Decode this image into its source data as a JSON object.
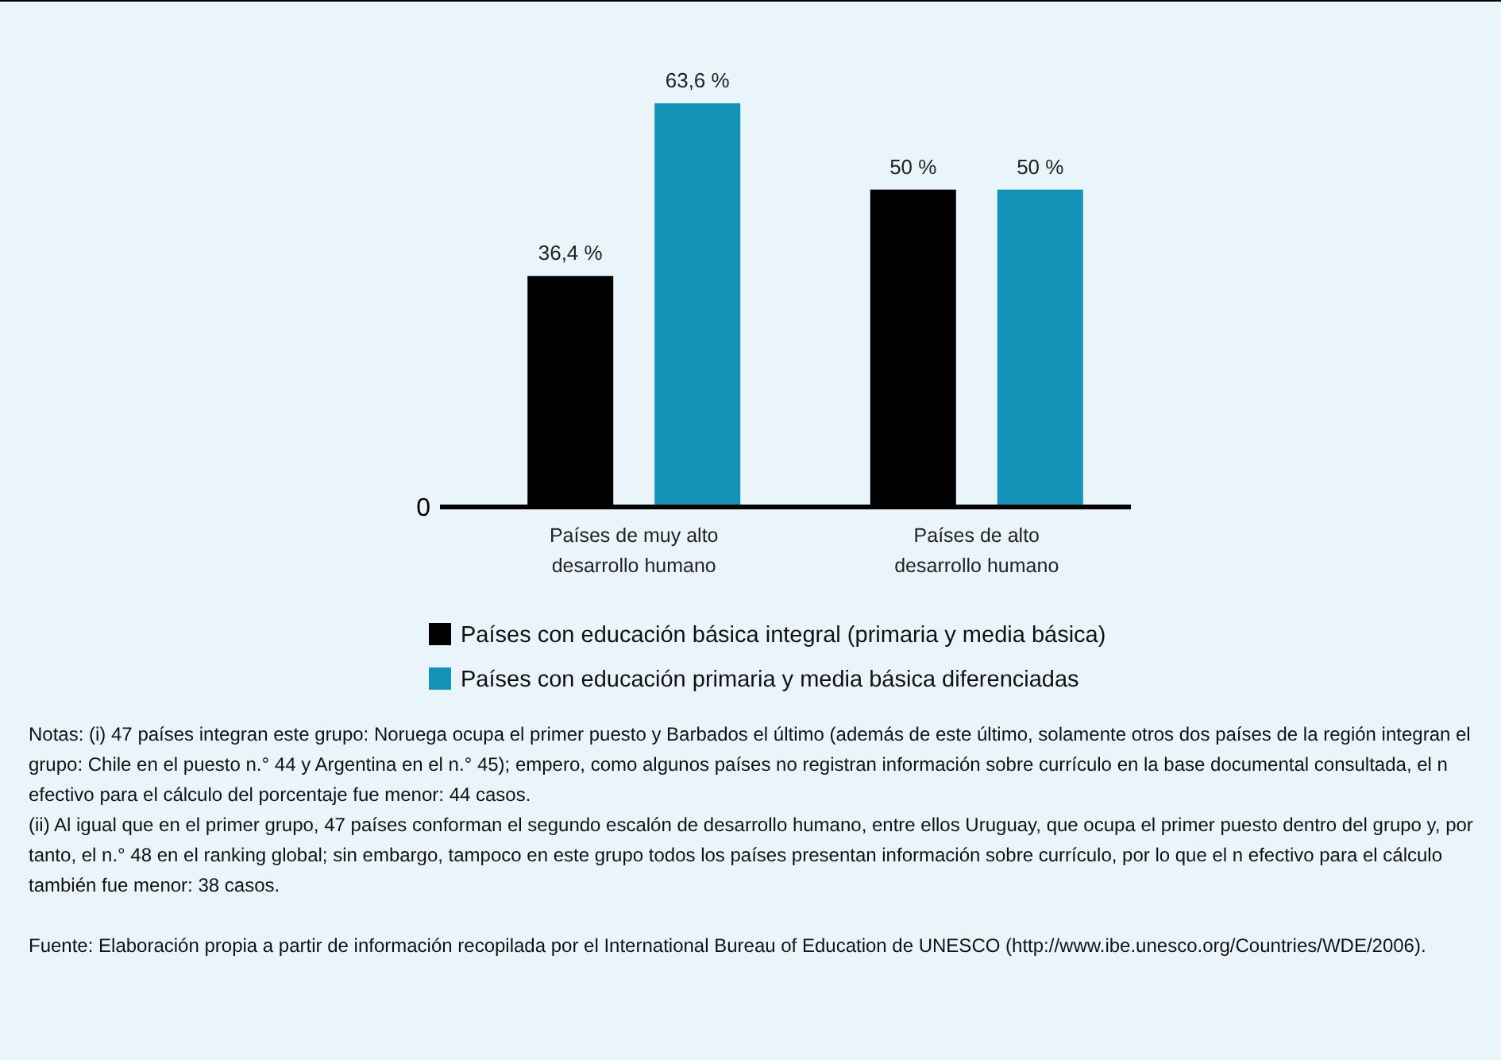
{
  "chart_data": {
    "type": "bar",
    "categories": [
      "Países de muy alto desarrollo humano",
      "Países de alto desarrollo humano"
    ],
    "series": [
      {
        "name": "Países con educación básica integral (primaria y media básica)",
        "color": "#000000",
        "values": [
          36.4,
          50
        ],
        "value_labels": [
          "36,4 %",
          "50 %"
        ]
      },
      {
        "name": "Países con educación primaria y media básica diferenciadas",
        "color": "#1492b8",
        "values": [
          63.6,
          50
        ],
        "value_labels": [
          "63,6 %",
          "50 %"
        ]
      }
    ],
    "legend": "bottom",
    "annotations": [
      "0",
      "Notas:  (i) 47 países integran este grupo: Noruega ocupa el primer puesto y Barbados el último (además de este último, solamente otros dos países de la región integran el grupo: Chile en el puesto n.° 44 y Argentina en el n.° 45); empero, como algunos países no registran información sobre currículo en la base documental consultada, el n efectivo para el cálculo del porcentaje fue menor: 44 casos.",
      "(ii) Al igual que en el primer grupo, 47 países conforman el segundo escalón de desarrollo humano, entre ellos Uruguay, que ocupa el primer puesto dentro del grupo y, por tanto, el n.° 48 en el ranking global; sin embargo, tampoco en este grupo todos los países presentan información sobre currículo, por lo que el n efectivo para el cálculo también fue menor: 38 casos.",
      "Fuente: Elaboración propia a partir de información recopilada por el International Bureau of Education de UNESCO (http://www.ibe.unesco.org/Countries/WDE/2006)."
    ]
  }
}
